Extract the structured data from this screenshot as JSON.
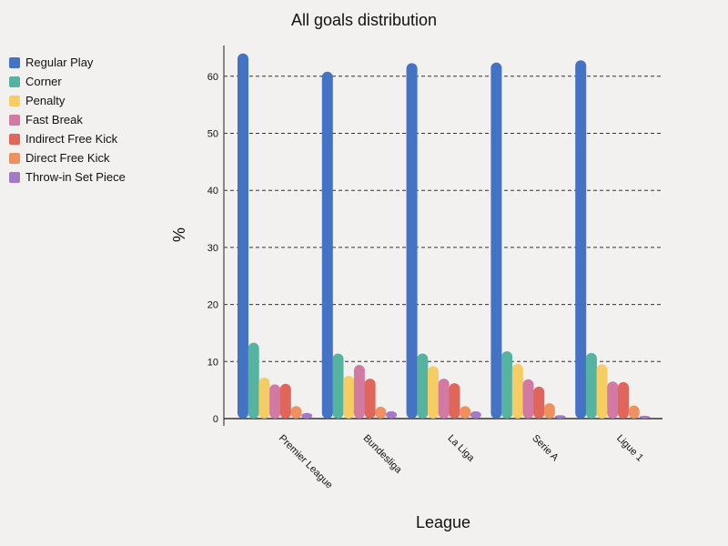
{
  "chart_data": {
    "type": "bar",
    "title": "All goals distribution",
    "xlabel": "League",
    "ylabel": "%",
    "ylim": [
      0,
      64
    ],
    "yticks": [
      0,
      10,
      20,
      30,
      40,
      50,
      60
    ],
    "grid": true,
    "legend_position": "top-left",
    "categories": [
      "Premier League",
      "Bundesliga",
      "La Liga",
      "Serie A",
      "Ligue 1"
    ],
    "series": [
      {
        "name": "Regular Play",
        "color": "#4472c4",
        "values": [
          64.0,
          60.8,
          62.3,
          62.4,
          62.8
        ]
      },
      {
        "name": "Corner",
        "color": "#55b3a0",
        "values": [
          13.3,
          11.4,
          11.4,
          11.8,
          11.5
        ]
      },
      {
        "name": "Penalty",
        "color": "#f5cd64",
        "values": [
          7.2,
          7.5,
          9.2,
          9.6,
          9.5
        ]
      },
      {
        "name": "Fast Break",
        "color": "#d27aa4",
        "values": [
          6.0,
          9.4,
          7.0,
          6.9,
          6.5
        ]
      },
      {
        "name": "Indirect Free Kick",
        "color": "#e0655a",
        "values": [
          6.1,
          7.0,
          6.2,
          5.6,
          6.4
        ]
      },
      {
        "name": "Direct Free Kick",
        "color": "#ee9060",
        "values": [
          2.2,
          2.1,
          2.2,
          2.7,
          2.3
        ]
      },
      {
        "name": "Throw-in Set Piece",
        "color": "#a27ac8",
        "values": [
          1.0,
          1.3,
          1.3,
          0.6,
          0.5
        ]
      }
    ]
  }
}
